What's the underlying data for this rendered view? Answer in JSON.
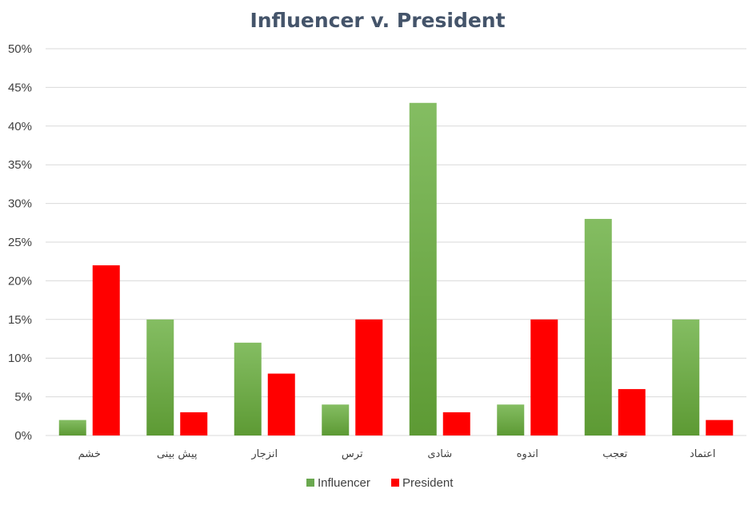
{
  "chart_data": {
    "type": "bar",
    "title": "Influencer v. President",
    "categories": [
      "خشم",
      "پیش بینی",
      "انزجار",
      "ترس",
      "شادی",
      "اندوه",
      "تعجب",
      "اعتماد"
    ],
    "series": [
      {
        "name": "Influencer",
        "values": [
          2,
          15,
          12,
          4,
          43,
          4,
          28,
          15
        ],
        "color": "#70ad47"
      },
      {
        "name": "President",
        "values": [
          22,
          3,
          8,
          15,
          3,
          15,
          6,
          2
        ],
        "color": "#ff0000"
      }
    ],
    "yticks": [
      "0%",
      "5%",
      "10%",
      "15%",
      "20%",
      "25%",
      "30%",
      "35%",
      "40%",
      "45%",
      "50%"
    ],
    "ylim": [
      0,
      50
    ],
    "ytick_step": 5,
    "grid": true,
    "legend_position": "bottom",
    "colors": {
      "gridline": "#d9d9d9",
      "title": "#44546a",
      "text": "#404040"
    }
  }
}
